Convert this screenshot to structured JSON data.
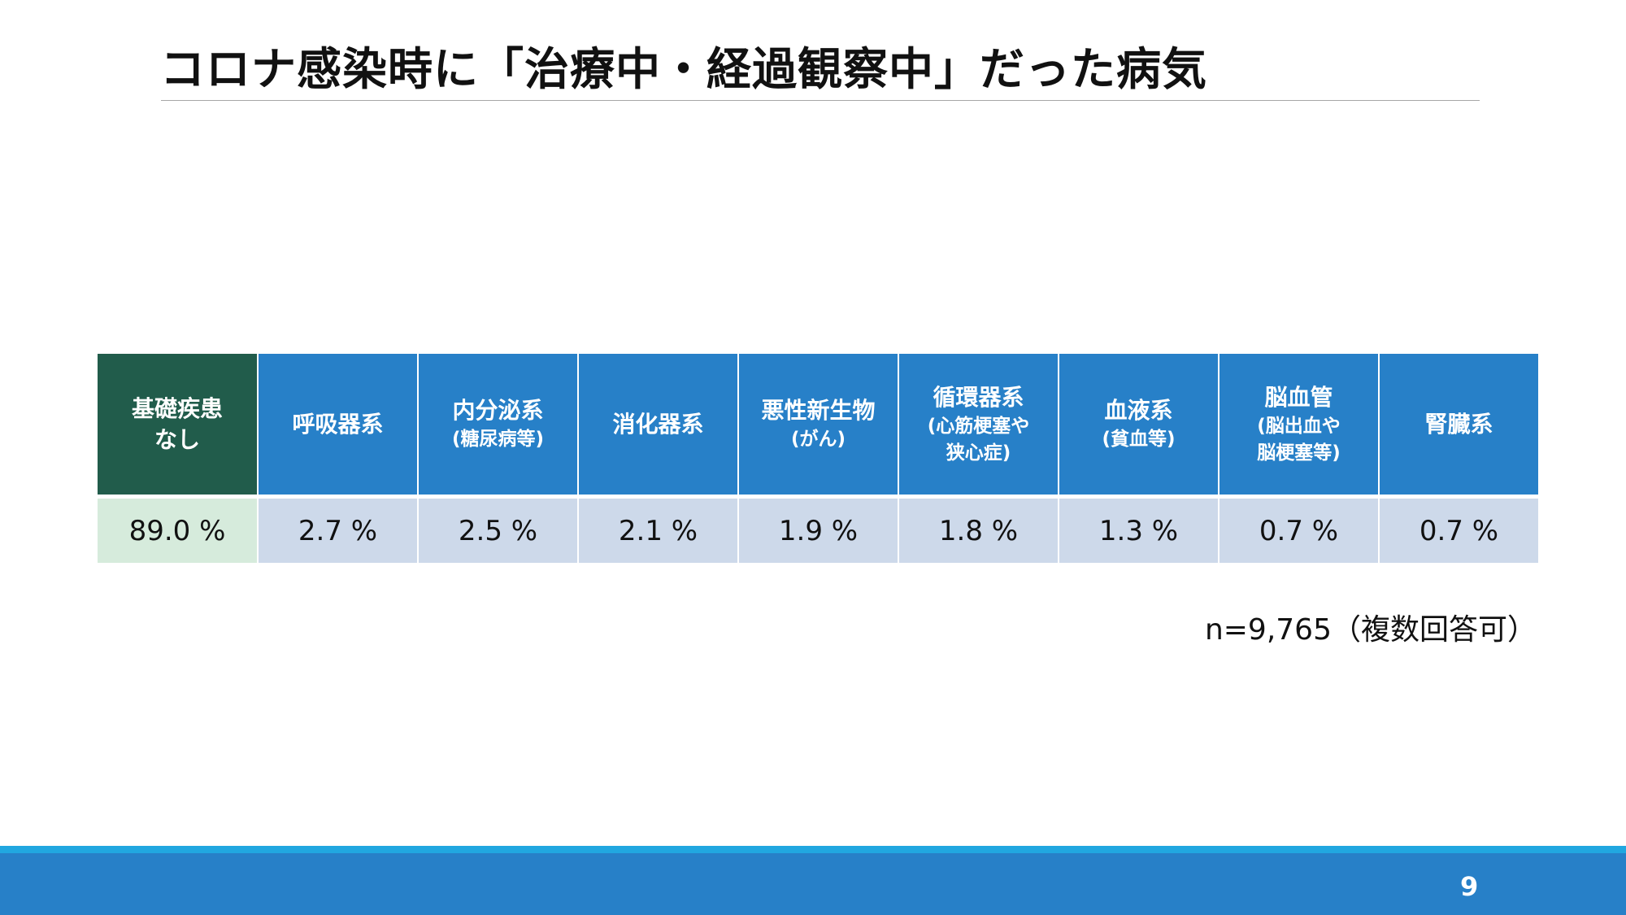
{
  "slide": {
    "title": "コロナ感染時に「治療中・経過観察中」だった病気",
    "note": "n=9,765（複数回答可）",
    "page_number": "9"
  },
  "colors": {
    "header_blue": "#2780c8",
    "header_green": "#215c4b",
    "value_blue": "#cdd9ea",
    "value_green": "#d6ebdc",
    "footer_stripe": "#21a7e0"
  },
  "table": {
    "columns": [
      {
        "label": "基礎疾患\nなし",
        "sub": "",
        "value": "89.0 %"
      },
      {
        "label": "呼吸器系",
        "sub": "",
        "value": "2.7 %"
      },
      {
        "label": "内分泌系",
        "sub": "(糖尿病等)",
        "value": "2.5 %"
      },
      {
        "label": "消化器系",
        "sub": "",
        "value": "2.1 %"
      },
      {
        "label": "悪性新生物",
        "sub": "(がん)",
        "value": "1.9 %"
      },
      {
        "label": "循環器系",
        "sub": "(心筋梗塞や\n狭心症)",
        "value": "1.8 %"
      },
      {
        "label": "血液系",
        "sub": "(貧血等)",
        "value": "1.3 %"
      },
      {
        "label": "脳血管",
        "sub": "(脳出血や\n脳梗塞等)",
        "value": "0.7 %"
      },
      {
        "label": "腎臓系",
        "sub": "",
        "value": "0.7 %"
      }
    ]
  }
}
